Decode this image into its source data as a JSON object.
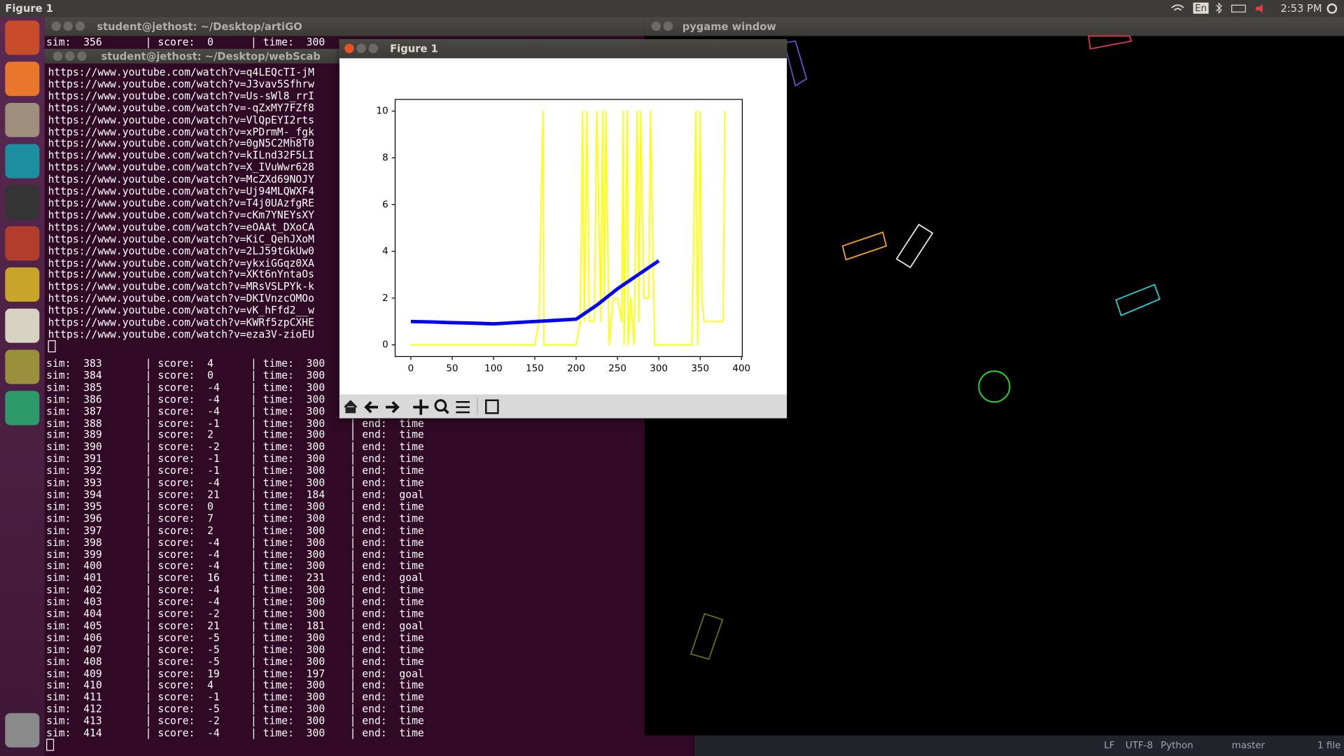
{
  "top_bar": {
    "app": "Figure 1",
    "lang": "En",
    "time": "2:53 PM"
  },
  "terminal_artigo": {
    "title": "student@jethost: ~/Desktop/artiGO",
    "lines_top": [
      "sim:  356       | score:  0      | time:  300"
    ],
    "lines": [
      "sim:  383       | score:  4      | time:  300",
      "sim:  384       | score:  0      | time:  300",
      "sim:  385       | score:  -4     | time:  300",
      "sim:  386       | score:  -4     | time:  300",
      "sim:  387       | score:  -4     | time:  300",
      "sim:  388       | score:  -1     | time:  300    | end:  time",
      "sim:  389       | score:  2      | time:  300    | end:  time",
      "sim:  390       | score:  -2     | time:  300    | end:  time",
      "sim:  391       | score:  -1     | time:  300    | end:  time",
      "sim:  392       | score:  -1     | time:  300    | end:  time",
      "sim:  393       | score:  -4     | time:  300    | end:  time",
      "sim:  394       | score:  21     | time:  184    | end:  goal",
      "sim:  395       | score:  0      | time:  300    | end:  time",
      "sim:  396       | score:  7      | time:  300    | end:  time",
      "sim:  397       | score:  2      | time:  300    | end:  time",
      "sim:  398       | score:  -4     | time:  300    | end:  time",
      "sim:  399       | score:  -4     | time:  300    | end:  time",
      "sim:  400       | score:  -4     | time:  300    | end:  time",
      "sim:  401       | score:  16     | time:  231    | end:  goal",
      "sim:  402       | score:  -4     | time:  300    | end:  time",
      "sim:  403       | score:  -4     | time:  300    | end:  time",
      "sim:  404       | score:  -2     | time:  300    | end:  time",
      "sim:  405       | score:  21     | time:  181    | end:  goal",
      "sim:  406       | score:  -5     | time:  300    | end:  time",
      "sim:  407       | score:  -5     | time:  300    | end:  time",
      "sim:  408       | score:  -5     | time:  300    | end:  time",
      "sim:  409       | score:  19     | time:  197    | end:  goal",
      "sim:  410       | score:  4      | time:  300    | end:  time",
      "sim:  411       | score:  -1     | time:  300    | end:  time",
      "sim:  412       | score:  -5     | time:  300    | end:  time",
      "sim:  413       | score:  -2     | time:  300    | end:  time",
      "sim:  414       | score:  -4     | time:  300    | end:  time"
    ]
  },
  "terminal_webscab": {
    "title": "student@jethost: ~/Desktop/webScab",
    "lines": [
      "https://www.youtube.com/watch?v=q4LEQcTI-jM",
      "https://www.youtube.com/watch?v=J3vav5Sfhrw",
      "https://www.youtube.com/watch?v=Us-sWl8_rrI",
      "https://www.youtube.com/watch?v=-qZxMY7FZf8",
      "https://www.youtube.com/watch?v=VlQpEYI2rts",
      "https://www.youtube.com/watch?v=xPDrmM-_fgk",
      "https://www.youtube.com/watch?v=0gN5C2Mh8T0",
      "https://www.youtube.com/watch?v=kILnd32F5LI",
      "https://www.youtube.com/watch?v=X_IVuWwr628",
      "https://www.youtube.com/watch?v=McZXd69NOJY",
      "https://www.youtube.com/watch?v=Uj94MLQWXF4",
      "https://www.youtube.com/watch?v=T4j0UAzfgRE",
      "https://www.youtube.com/watch?v=cKm7YNEYsXY",
      "https://www.youtube.com/watch?v=eOAAt_DXoCA",
      "https://www.youtube.com/watch?v=KiC_QehJXoM",
      "https://www.youtube.com/watch?v=2LJ59tGkUw0",
      "https://www.youtube.com/watch?v=ykxiGGqz0XA",
      "https://www.youtube.com/watch?v=XKt6nYntaOs",
      "https://www.youtube.com/watch?v=MRsVSLPYk-k",
      "https://www.youtube.com/watch?v=DKIVnzcOMOo",
      "https://www.youtube.com/watch?v=vK_hFfd2__w",
      "https://www.youtube.com/watch?v=KWRf5zpCXHE",
      "https://www.youtube.com/watch?v=eza3V-zioEU"
    ]
  },
  "pygame": {
    "title": "pygame window"
  },
  "figure": {
    "title": "Figure 1"
  },
  "chart_data": {
    "type": "line",
    "xlim": [
      -19,
      401
    ],
    "ylim": [
      -0.5,
      10.5
    ],
    "xticks": [
      0,
      50,
      100,
      150,
      200,
      250,
      300,
      350,
      400
    ],
    "yticks": [
      0,
      2,
      4,
      6,
      8,
      10
    ],
    "series": [
      {
        "color": "#ffff00",
        "linewidth": 1.5,
        "x": [
          0,
          150,
          155,
          160,
          161,
          165,
          200,
          205,
          208,
          210,
          213,
          216,
          222,
          225,
          230,
          232,
          234,
          236,
          240,
          245,
          250,
          255,
          257,
          258,
          262,
          263,
          266,
          270,
          274,
          276,
          278,
          282,
          288,
          290,
          295,
          300,
          340,
          345,
          347,
          350,
          352,
          355,
          360,
          378,
          380
        ],
        "values": [
          0,
          0,
          1,
          10,
          0,
          0,
          0,
          1,
          10,
          1,
          10,
          1,
          1,
          10,
          1,
          10,
          2,
          10,
          0,
          2,
          2,
          1,
          10,
          0,
          10,
          0,
          2,
          0,
          10,
          1,
          10,
          2,
          2,
          10,
          0,
          0,
          0,
          10,
          0,
          10,
          2,
          1,
          1,
          1,
          10
        ]
      },
      {
        "color": "#0000ff",
        "linewidth": 4,
        "x": [
          0,
          25,
          50,
          75,
          100,
          125,
          150,
          175,
          200,
          225,
          250,
          275,
          300
        ],
        "values": [
          1.0,
          0.98,
          0.95,
          0.93,
          0.9,
          0.95,
          1.0,
          1.05,
          1.1,
          1.7,
          2.4,
          3.0,
          3.6
        ]
      }
    ]
  },
  "status_bar": {
    "items": [
      "LF",
      "UTF-8",
      "Python",
      "master",
      "1 file"
    ]
  }
}
